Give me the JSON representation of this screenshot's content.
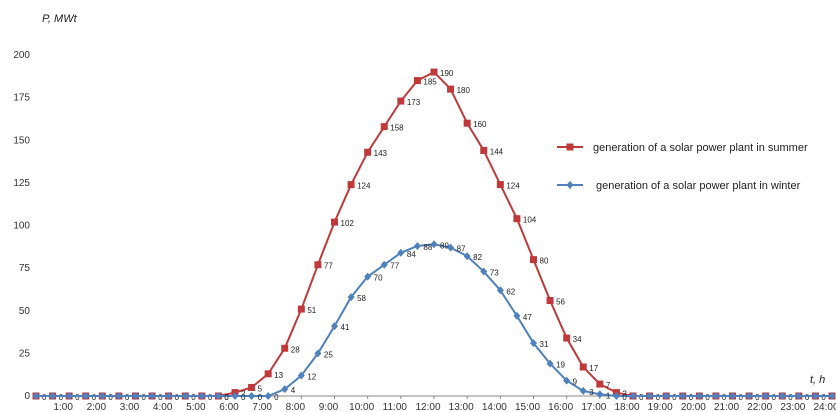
{
  "chart_data": {
    "type": "line",
    "ylabel": "P, MWt",
    "xlabel": "t, h",
    "ylim": [
      0,
      200
    ],
    "yticks": [
      0,
      25,
      50,
      75,
      100,
      125,
      150,
      175,
      200
    ],
    "x": [
      0,
      0.5,
      1,
      1.5,
      2,
      2.5,
      3,
      3.5,
      4,
      4.5,
      5,
      5.5,
      6,
      6.5,
      7,
      7.5,
      8,
      8.5,
      9,
      9.5,
      10,
      10.5,
      11,
      11.5,
      12,
      12.5,
      13,
      13.5,
      14,
      14.5,
      15,
      15.5,
      16,
      16.5,
      17,
      17.5,
      18,
      18.5,
      19,
      19.5,
      20,
      20.5,
      21,
      21.5,
      22,
      22.5,
      23,
      23.5,
      24
    ],
    "xticks": [
      "1:00",
      "2:00",
      "3:00",
      "4:00",
      "5:00",
      "6:00",
      "7:00",
      "8:00",
      "9:00",
      "10:00",
      "11:00",
      "12:00",
      "13:00",
      "14:00",
      "15:00",
      "16:00",
      "17:00",
      "18:00",
      "19:00",
      "20:00",
      "21:00",
      "22:00",
      "23:00",
      "24:00"
    ],
    "legend_position": "right",
    "series": [
      {
        "name": "generation of a solar power plant in summer",
        "color": "#c0393a",
        "marker": "square",
        "values": [
          0,
          0,
          0,
          0,
          0,
          0,
          0,
          0,
          0,
          0,
          0,
          0,
          2,
          5,
          13,
          28,
          51,
          77,
          102,
          124,
          143,
          158,
          173,
          185,
          190,
          180,
          160,
          144,
          124,
          104,
          80,
          56,
          34,
          17,
          7,
          2,
          0,
          0,
          0,
          0,
          0,
          0,
          0,
          0,
          0,
          0,
          0,
          0,
          0
        ],
        "labels": [
          "0",
          "0",
          "0",
          "0",
          "0",
          "0",
          "0",
          "0",
          "0",
          "0",
          "0",
          "0",
          "2",
          "5",
          "13",
          "28",
          "51",
          "77",
          "102",
          "124",
          "143",
          "158",
          "173",
          "185",
          "190",
          "180",
          "160",
          "144",
          "124",
          "104",
          "80",
          "56",
          "34",
          "17",
          "7",
          "2",
          "0",
          "0",
          "0",
          "0",
          "0",
          "0",
          "0",
          "0",
          "0",
          "0",
          "0",
          "0",
          "0"
        ]
      },
      {
        "name": "generation of a solar power plant in winter",
        "color": "#4f81bd",
        "marker": "diamond",
        "values": [
          0,
          0,
          0,
          0,
          0,
          0,
          0,
          0,
          0,
          0,
          0,
          0,
          0,
          0,
          0,
          4,
          12,
          25,
          41,
          58,
          70,
          77,
          84,
          88,
          89,
          87,
          82,
          73,
          62,
          47,
          31,
          19,
          9,
          3,
          1,
          0,
          0,
          0,
          0,
          0,
          0,
          0,
          0,
          0,
          0,
          0,
          0,
          0,
          0
        ],
        "labels": [
          "",
          "",
          "",
          "",
          "",
          "",
          "",
          "",
          "",
          "",
          "",
          "0",
          "0",
          "0",
          "0",
          "4",
          "12",
          "25",
          "41",
          "58",
          "70",
          "77",
          "84",
          "88",
          "89",
          "87",
          "82",
          "73",
          "62",
          "47",
          "31",
          "19",
          "9",
          "3",
          "1",
          "0",
          "",
          "",
          "",
          "",
          "",
          "",
          "",
          "",
          "",
          "",
          "",
          "",
          ""
        ]
      }
    ]
  }
}
